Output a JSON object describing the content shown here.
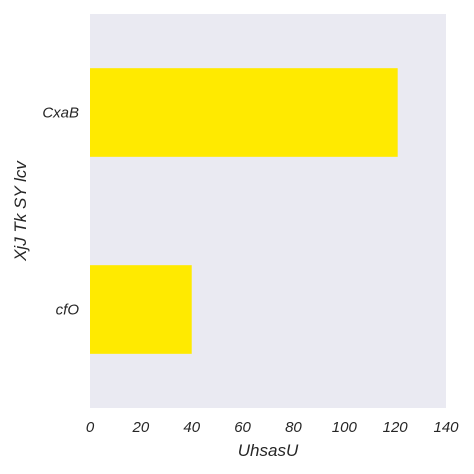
{
  "chart_data": {
    "type": "bar",
    "orientation": "horizontal",
    "categories": [
      "CxaB",
      "cfO"
    ],
    "values": [
      121,
      40
    ],
    "xlabel": "UhsasU",
    "ylabel": "XjJ Tk SY lcv",
    "xlim": [
      0,
      140
    ],
    "xticks": [
      0,
      20,
      40,
      60,
      80,
      100,
      120,
      140
    ],
    "grid": false,
    "legend": "none",
    "colors": {
      "bar": "#ffea00",
      "plot_background": "#eaeaf2",
      "text": "#262626"
    }
  }
}
